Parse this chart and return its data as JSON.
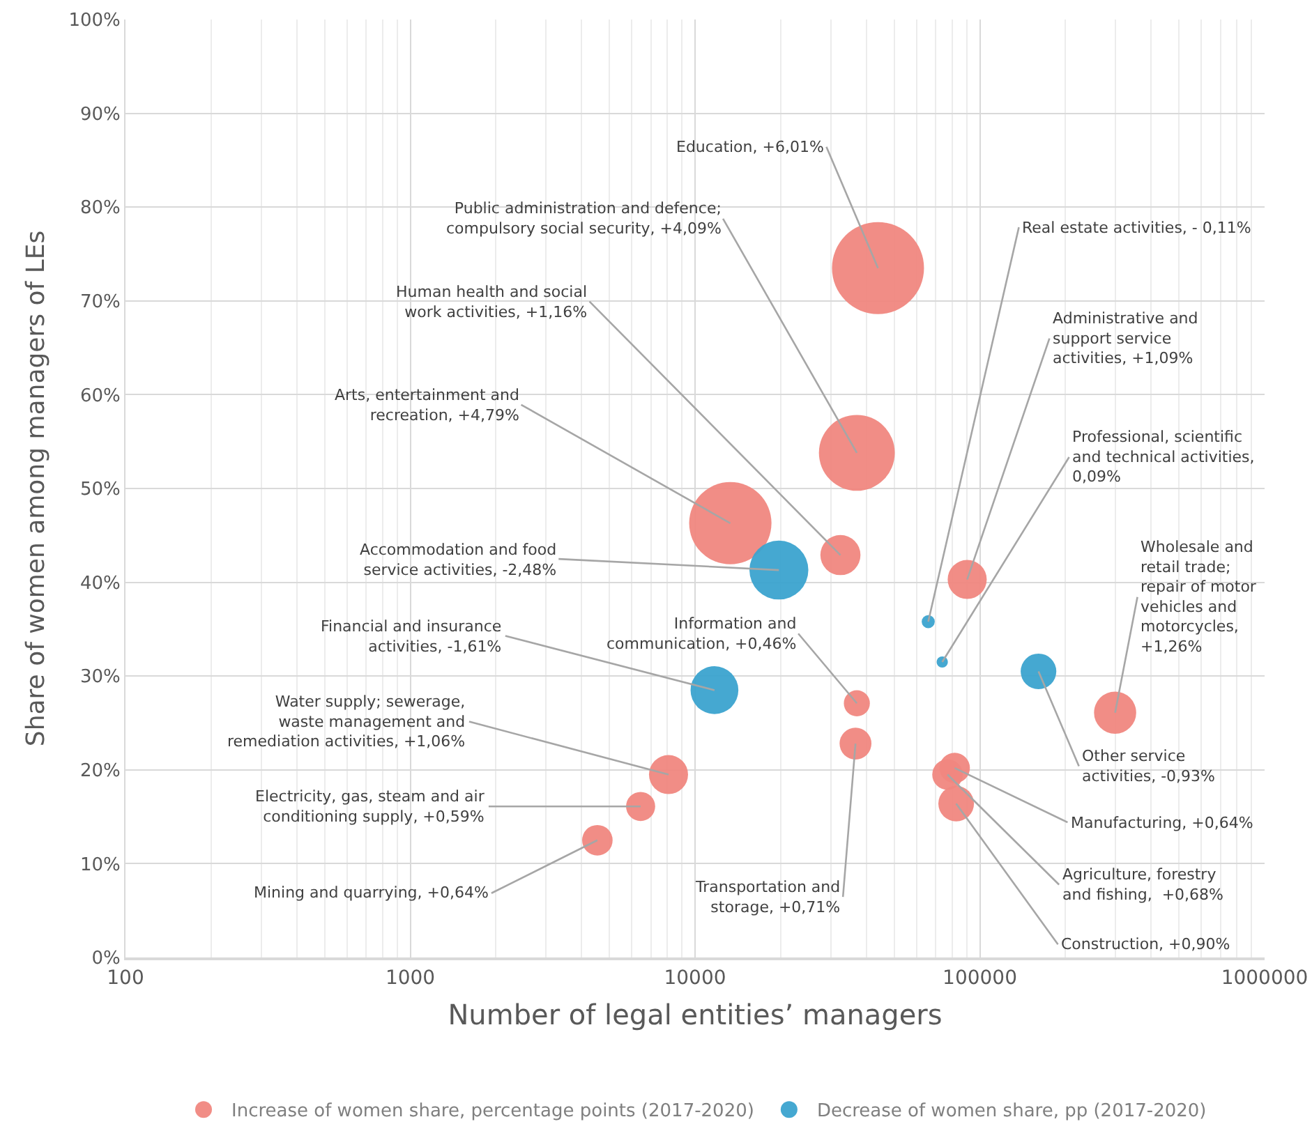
{
  "chart_data": {
    "type": "bubble",
    "xlabel": "Number of legal entities’ managers",
    "ylabel": "Share of women among managers of LEs",
    "log": "x",
    "grid": true,
    "legend": "bottom",
    "xlim": [
      100,
      1000000
    ],
    "xticks": [
      100,
      1000,
      10000,
      100000,
      1000000
    ],
    "ylim": [
      0,
      100
    ],
    "yticks": [
      {
        "value": 0,
        "label": "0%"
      },
      {
        "value": 10,
        "label": "10%"
      },
      {
        "value": 20,
        "label": "20%"
      },
      {
        "value": 30,
        "label": "30%"
      },
      {
        "value": 40,
        "label": "40%"
      },
      {
        "value": 50,
        "label": "50%"
      },
      {
        "value": 60,
        "label": "60%"
      },
      {
        "value": 70,
        "label": "70%"
      },
      {
        "value": 80,
        "label": "80%"
      },
      {
        "value": 90,
        "label": "90%"
      },
      {
        "value": 100,
        "label": "100%"
      }
    ],
    "series": [
      {
        "name": "Increase of women share, percentage points (2017-2020)",
        "color": "#f0877f",
        "x": [
          43900,
          37000,
          32400,
          13300,
          8070,
          6440,
          4540,
          37000,
          36600,
          90300,
          298600,
          81600,
          77000,
          82600
        ],
        "values": [
          73.5,
          53.8,
          42.9,
          46.3,
          19.5,
          16.1,
          12.5,
          27.1,
          22.8,
          40.3,
          26.1,
          20.2,
          19.5,
          16.4
        ],
        "sizes": [
          1,
          0.68,
          0.19,
          0.8,
          0.18,
          0.1,
          0.11,
          0.08,
          0.12,
          0.18,
          0.21,
          0.11,
          0.11,
          0.15
        ]
      },
      {
        "name": "Decrease of women share, pp (2017-2020)",
        "color": "#3ba3cf",
        "x": [
          19700,
          11700,
          65900,
          73800,
          160700
        ],
        "values": [
          41.3,
          28.5,
          35.8,
          31.5,
          30.5
        ],
        "sizes": [
          0.41,
          0.27,
          0.02,
          0.015,
          0.15
        ]
      }
    ],
    "annotations": [
      {
        "text": "Education, +6,01%",
        "x": 43900,
        "y": 73.5
      },
      {
        "text": "Public administration and defence;\ncompulsory social security, +4,09%",
        "x": 37000,
        "y": 53.8
      },
      {
        "text": "Human health and social\nwork activities, +1,16%",
        "x": 32400,
        "y": 42.9
      },
      {
        "text": "Arts, entertainment and\nrecreation, +4,79%",
        "x": 13300,
        "y": 46.3
      },
      {
        "text": "Accommodation and food\nservice activities, -2,48%",
        "x": 19700,
        "y": 41.3
      },
      {
        "text": "Financial and insurance\nactivities, -1,61%",
        "x": 11700,
        "y": 28.5
      },
      {
        "text": "Water supply; sewerage,\nwaste management and\nremediation activities, +1,06%",
        "x": 8070,
        "y": 19.5
      },
      {
        "text": "Electricity, gas, steam and air\nconditioning supply, +0,59%",
        "x": 6440,
        "y": 16.1
      },
      {
        "text": "Mining and quarrying, +0,64%",
        "x": 4540,
        "y": 12.5
      },
      {
        "text": "Information and\ncommunication, +0,46%",
        "x": 37000,
        "y": 27.1
      },
      {
        "text": "Transportation and\nstorage, +0,71%",
        "x": 36600,
        "y": 22.8
      },
      {
        "text": "Real estate activities, - 0,11%",
        "x": 65900,
        "y": 35.8
      },
      {
        "text": "Administrative and\nsupport service\nactivities, +1,09%",
        "x": 90300,
        "y": 40.3
      },
      {
        "text": "Professional, scientific\nand technical activities,\n0,09%",
        "x": 73800,
        "y": 31.5
      },
      {
        "text": "Wholesale and\nretail trade;\nrepair of motor\nvehicles and\nmotorcycles,\n+1,26%",
        "x": 298600,
        "y": 26.1
      },
      {
        "text": "Other service\nactivities, -0,93%",
        "x": 160700,
        "y": 30.5
      },
      {
        "text": "Manufacturing, +0,64%",
        "x": 81600,
        "y": 20.2
      },
      {
        "text": "Agriculture, forestry\nand fishing,  +0,68%",
        "x": 77000,
        "y": 19.5
      },
      {
        "text": "Construction, +0,90%",
        "x": 82600,
        "y": 16.4
      }
    ]
  }
}
